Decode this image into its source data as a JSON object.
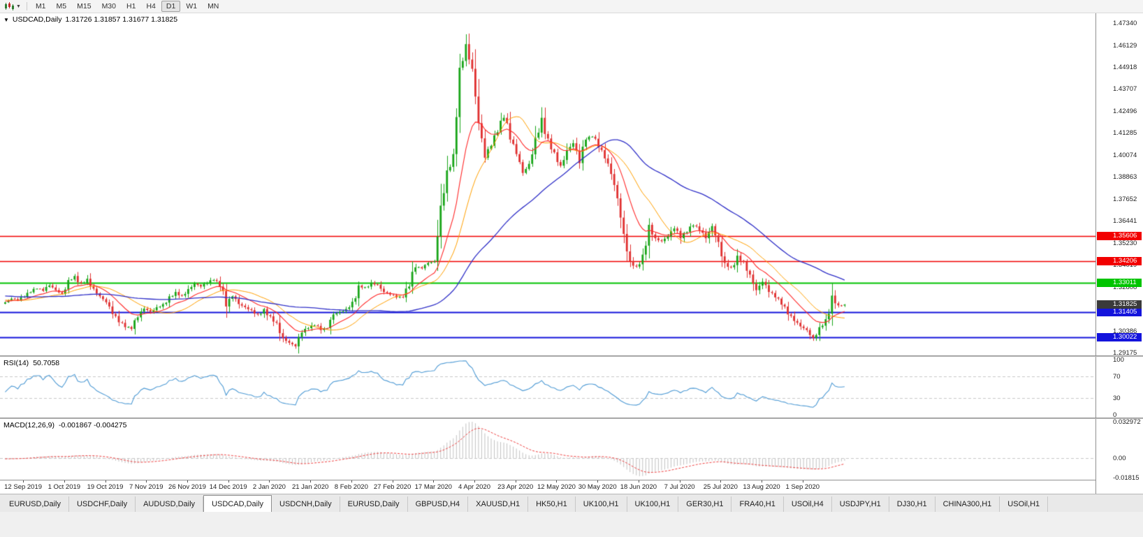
{
  "toolbar": {
    "chart_icon": "candlestick-chart",
    "timeframes": [
      "M1",
      "M5",
      "M15",
      "M30",
      "H1",
      "H4",
      "D1",
      "W1",
      "MN"
    ],
    "active_timeframe": "D1"
  },
  "chart": {
    "dropdown_glyph": "▼",
    "symbol_label": "USDCAD,Daily",
    "ohlc_text": "1.31726 1.31857 1.31677 1.31825",
    "price_range": {
      "top": 1.4765,
      "bottom": 1.2906
    },
    "price_axis_labels": [
      "1.47340",
      "1.46129",
      "1.44918",
      "1.43707",
      "1.42496",
      "1.41285",
      "1.40074",
      "1.38863",
      "1.37652",
      "1.36441",
      "1.35230",
      "1.34019",
      "1.32808",
      "1.31597",
      "1.30386",
      "1.29175"
    ],
    "current_price": {
      "value": 1.31825,
      "label": "1.31825",
      "color": "#3a3a3a"
    },
    "hlines": [
      {
        "value": 1.35606,
        "label": "1.35606",
        "color": "#f20000",
        "width": 1.4
      },
      {
        "value": 1.34206,
        "label": "1.34206",
        "color": "#f20000",
        "width": 1.4
      },
      {
        "value": 1.33011,
        "label": "1.33011",
        "color": "#00c400",
        "width": 2
      },
      {
        "value": 1.31405,
        "label": "1.31405",
        "color": "#1414dc",
        "width": 2
      },
      {
        "value": 1.30022,
        "label": "1.30022",
        "color": "#1414dc",
        "width": 2
      }
    ],
    "colors": {
      "up": "#18a518",
      "down": "#e03030",
      "ma_fast": "#ff2a2a",
      "ma_mid": "#ffa000",
      "ma_slow": "#3030c8",
      "rsi": "#4f9bd5",
      "macd_hist": "#c2c2c2",
      "macd_signal": "#f04040",
      "level_dash": "#c8c8c8"
    }
  },
  "rsi_pane": {
    "title": "RSI(14)",
    "value": "50.7058",
    "axis_labels": [
      {
        "v": 100,
        "label": "100"
      },
      {
        "v": 70,
        "label": "70"
      },
      {
        "v": 30,
        "label": "30"
      },
      {
        "v": 0,
        "label": "0"
      }
    ],
    "dash_levels": [
      70,
      30
    ]
  },
  "macd_pane": {
    "title": "MACD(12,26,9)",
    "values": "-0.001867 -0.004275",
    "range": {
      "top": 0.032972,
      "bottom": -0.01815
    },
    "axis_labels": [
      {
        "v": 0.032972,
        "label": "0.032972"
      },
      {
        "v": 0,
        "label": "0.00"
      },
      {
        "v": -0.01815,
        "label": "-0.01815"
      }
    ]
  },
  "chart_data": {
    "type": "candlestick",
    "symbol": "USDCAD",
    "period": "Daily",
    "title": "USDCAD,Daily",
    "last_ohlc": {
      "open": 1.31726,
      "high": 1.31857,
      "low": 1.31677,
      "close": 1.31825
    },
    "ylim": [
      1.2906,
      1.4765
    ],
    "key_levels": [
      1.35606,
      1.34206,
      1.33011,
      1.31405,
      1.30022
    ],
    "rsi_value": 50.7058,
    "macd_values": [
      -0.001867,
      -0.004275
    ],
    "x_tick_labels": [
      "12 Sep 2019",
      "1 Oct 2019",
      "19 Oct 2019",
      "7 Nov 2019",
      "26 Nov 2019",
      "14 Dec 2019",
      "2 Jan 2020",
      "21 Jan 2020",
      "8 Feb 2020",
      "27 Feb 2020",
      "17 Mar 2020",
      "4 Apr 2020",
      "23 Apr 2020",
      "12 May 2020",
      "30 May 2020",
      "18 Jun 2020",
      "7 Jul 2020",
      "25 Jul 2020",
      "13 Aug 2020",
      "1 Sep 2020"
    ],
    "ticks_every_candles": 13,
    "first_tick_candle_index": 6,
    "candles_per_anchor": 2,
    "anchor_closes": [
      1.3195,
      1.3215,
      1.3205,
      1.3225,
      1.325,
      1.327,
      1.3258,
      1.3288,
      1.3262,
      1.3242,
      1.3318,
      1.334,
      1.33,
      1.3325,
      1.327,
      1.3228,
      1.3195,
      1.313,
      1.3085,
      1.3058,
      1.3048,
      1.3112,
      1.316,
      1.3142,
      1.3168,
      1.3185,
      1.3228,
      1.3252,
      1.3232,
      1.3268,
      1.3298,
      1.3282,
      1.3302,
      1.3318,
      1.3282,
      1.3172,
      1.3228,
      1.3185,
      1.3168,
      1.3152,
      1.3128,
      1.3158,
      1.3118,
      1.3082,
      1.2998,
      1.2972,
      1.2952,
      1.3028,
      1.3052,
      1.3068,
      1.3042,
      1.3052,
      1.3128,
      1.3142,
      1.3158,
      1.3198,
      1.3288,
      1.3278,
      1.3302,
      1.3292,
      1.3252,
      1.3238,
      1.3222,
      1.3222,
      1.3282,
      1.3388,
      1.3382,
      1.3412,
      1.3422,
      1.3728,
      1.3922,
      1.4012,
      1.4488,
      1.4618,
      1.4482,
      1.4182,
      1.3992,
      1.4058,
      1.4132,
      1.4212,
      1.4092,
      1.4012,
      1.3908,
      1.3958,
      1.4102,
      1.4212,
      1.4098,
      1.4022,
      1.3948,
      1.4032,
      1.4072,
      1.3962,
      1.4092,
      1.4108,
      1.4048,
      1.3988,
      1.3902,
      1.3768,
      1.3572,
      1.3422,
      1.3392,
      1.3458,
      1.3622,
      1.3548,
      1.3532,
      1.3558,
      1.3602,
      1.3548,
      1.3582,
      1.3618,
      1.3592,
      1.3548,
      1.3615,
      1.3528,
      1.3412,
      1.3388,
      1.3452,
      1.3418,
      1.3348,
      1.3262,
      1.3308,
      1.3252,
      1.3222,
      1.3182,
      1.3128,
      1.3092,
      1.3062,
      1.3042,
      1.2998,
      1.3058,
      1.3102,
      1.3232,
      1.3178,
      1.31825
    ],
    "indicators": {
      "ma_periods": [
        13,
        21,
        55
      ],
      "rsi_period": 14,
      "macd_params": [
        12,
        26,
        9
      ]
    }
  },
  "tabs": {
    "active_index": 3,
    "items": [
      "EURUSD,Daily",
      "USDCHF,Daily",
      "AUDUSD,Daily",
      "USDCAD,Daily",
      "USDCNH,Daily",
      "EURUSD,Daily",
      "GBPUSD,H4",
      "XAUUSD,H1",
      "HK50,H1",
      "UK100,H1",
      "UK100,H1",
      "GER30,H1",
      "FRA40,H1",
      "USOil,H4",
      "USDJPY,H1",
      "DJ30,H1",
      "CHINA300,H1",
      "USOil,H1"
    ]
  }
}
